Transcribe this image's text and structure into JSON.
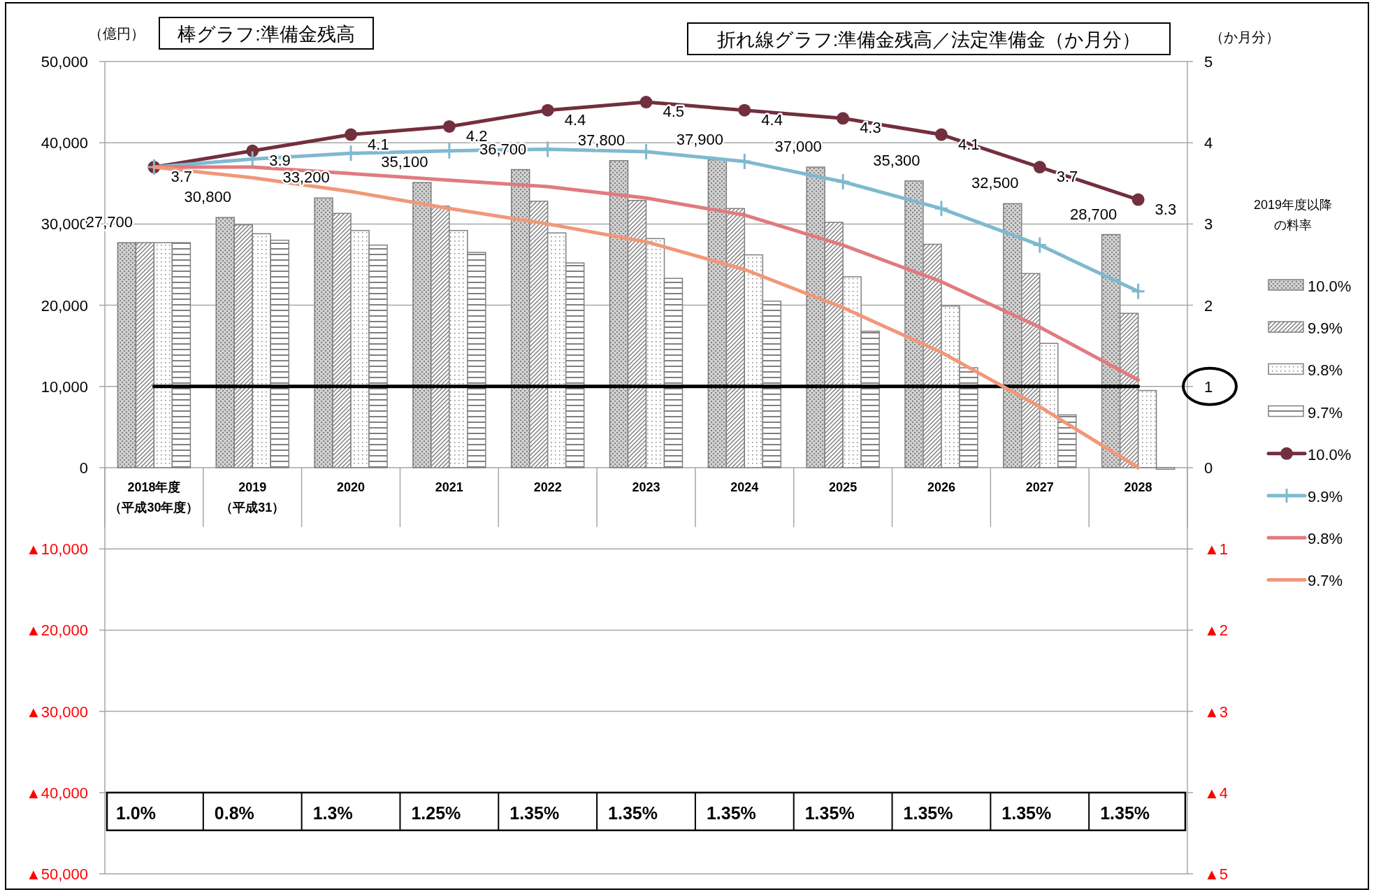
{
  "chart_data": {
    "type": "bar",
    "title": "棒グラフ:準備金残高",
    "subtitle": "折れ線グラフ:準備金残高／法定準備金（か月分）",
    "ylabel": "（億円）",
    "y2label": "（か月分）",
    "legend_title": "2019年度以降の料率",
    "legend": "right",
    "grid": "y",
    "categories": [
      "2018年度（平成30年度）",
      "2019（平成31）",
      "2020",
      "2021",
      "2022",
      "2023",
      "2024",
      "2025",
      "2026",
      "2027",
      "2028"
    ],
    "ylim": [
      -50000,
      50000
    ],
    "yticks": [
      {
        "value": -50000,
        "label": "▲50,000"
      },
      {
        "value": -40000,
        "label": "▲40,000"
      },
      {
        "value": -30000,
        "label": "▲30,000"
      },
      {
        "value": -20000,
        "label": "▲20,000"
      },
      {
        "value": -10000,
        "label": "▲10,000"
      },
      {
        "value": 0,
        "label": "0"
      },
      {
        "value": 10000,
        "label": "10,000"
      },
      {
        "value": 20000,
        "label": "20,000"
      },
      {
        "value": 30000,
        "label": "30,000"
      },
      {
        "value": 40000,
        "label": "40,000"
      },
      {
        "value": 50000,
        "label": "50,000"
      }
    ],
    "y2lim": [
      -5,
      5
    ],
    "y2ticks": [
      {
        "value": -5,
        "label": "▲5"
      },
      {
        "value": -4,
        "label": "▲4"
      },
      {
        "value": -3,
        "label": "▲3"
      },
      {
        "value": -2,
        "label": "▲2"
      },
      {
        "value": -1,
        "label": "▲1"
      },
      0,
      1,
      2,
      3,
      4,
      5
    ],
    "series": [
      {
        "name": "10.0%",
        "color": "#808080",
        "values": [
          27700,
          30800,
          33200,
          35100,
          36700,
          37800,
          37900,
          37000,
          35300,
          32500,
          28700
        ],
        "value_labels": [
          "27,700",
          "30,800",
          "33,200",
          "35,100",
          "36,700",
          "37,800",
          "37,900",
          "37,000",
          "35,300",
          "32,500",
          "28,700"
        ]
      },
      {
        "name": "9.9%",
        "color": "#808080",
        "values": [
          27700,
          29900,
          31300,
          32200,
          32800,
          32900,
          31900,
          30200,
          27500,
          23900,
          19000
        ]
      },
      {
        "name": "9.8%",
        "color": "#808080",
        "values": [
          27700,
          28800,
          29200,
          29200,
          28900,
          28200,
          26200,
          23500,
          19900,
          15300,
          9500
        ]
      },
      {
        "name": "9.7%",
        "color": "#808080",
        "values": [
          27700,
          28000,
          27400,
          26500,
          25200,
          23300,
          20500,
          16800,
          12300,
          6500,
          -200
        ]
      },
      {
        "name": "10.0%",
        "type": "line",
        "axis": "y2",
        "color": "#722f3e",
        "marker": "circle",
        "values": [
          3.7,
          3.9,
          4.1,
          4.2,
          4.4,
          4.5,
          4.4,
          4.3,
          4.1,
          3.7,
          3.3
        ],
        "value_labels": [
          "3.7",
          "3.9",
          "4.1",
          "4.2",
          "4.4",
          "4.5",
          "4.4",
          "4.3",
          "4.1",
          "3.7",
          "3.3"
        ]
      },
      {
        "name": "9.9%",
        "type": "line",
        "axis": "y2",
        "color": "#7fb9d0",
        "marker": "cross",
        "values": [
          3.7,
          3.8,
          3.87,
          3.9,
          3.92,
          3.89,
          3.77,
          3.52,
          3.19,
          2.74,
          2.17
        ]
      },
      {
        "name": "9.8%",
        "type": "line",
        "axis": "y2",
        "color": "#e07b7f",
        "values": [
          3.7,
          3.7,
          3.62,
          3.54,
          3.46,
          3.32,
          3.11,
          2.74,
          2.29,
          1.73,
          1.08
        ]
      },
      {
        "name": "9.7%",
        "type": "line",
        "axis": "y2",
        "color": "#f0987a",
        "values": [
          3.7,
          3.57,
          3.4,
          3.19,
          3.0,
          2.78,
          2.44,
          1.97,
          1.42,
          0.75,
          0.0
        ]
      }
    ],
    "ref_lines": [
      {
        "axis": "y2",
        "value": 1,
        "color": "#000000"
      }
    ],
    "annotations": [
      "1.0%",
      "0.8%",
      "1.3%",
      "1.25%",
      "1.35%",
      "1.35%",
      "1.35%",
      "1.35%",
      "1.35%",
      "1.35%",
      "1.35%"
    ]
  }
}
